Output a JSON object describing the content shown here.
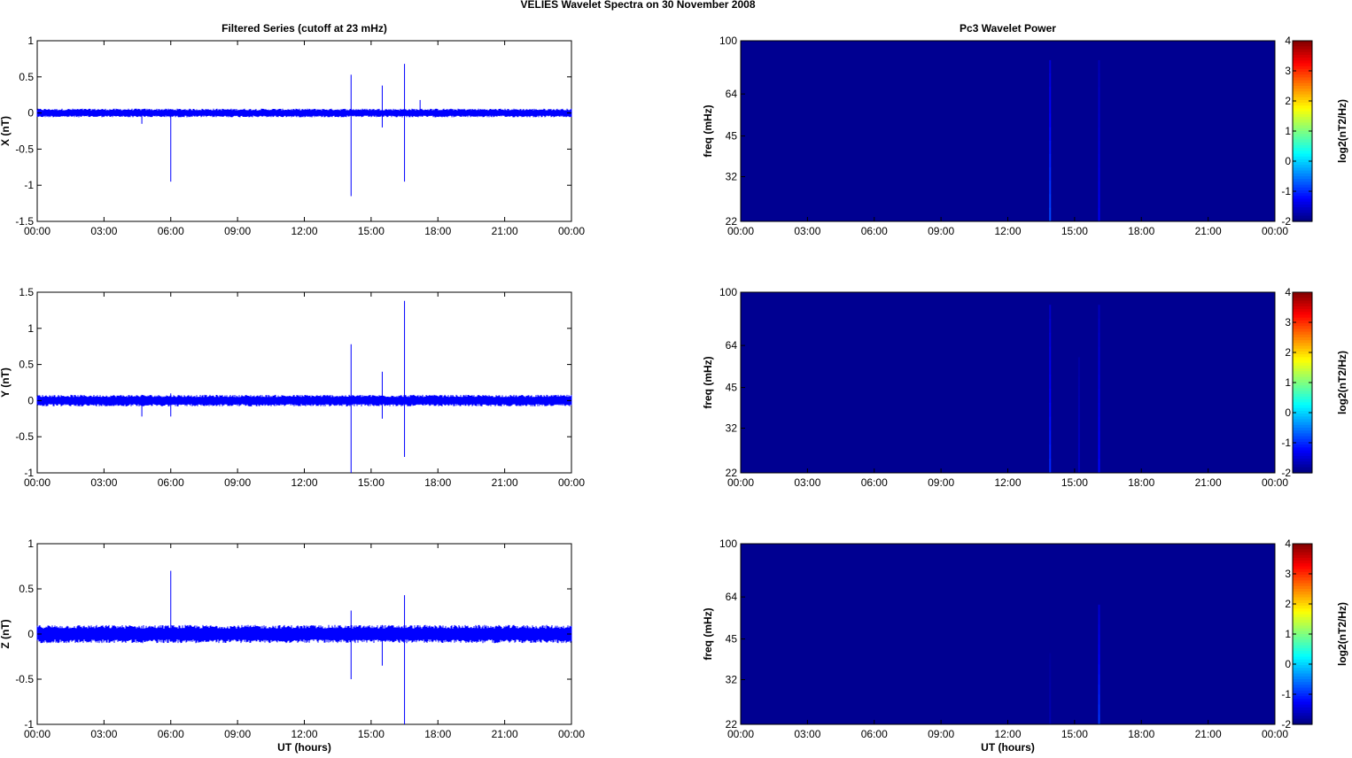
{
  "figure_title": "VELIES Wavelet Spectra on 30 November  2008",
  "colors": {
    "trace": "#0000ff",
    "background_low": "#0000a6",
    "axis": "#000000"
  },
  "chart_data": [
    {
      "type": "line",
      "title": "Filtered Series (cutoff at 23 mHz)",
      "xlabel": "",
      "ylabel": "X (nT)",
      "x_ticks": [
        "00:00",
        "03:00",
        "06:00",
        "09:00",
        "12:00",
        "15:00",
        "18:00",
        "21:00",
        "00:00"
      ],
      "xlim_hours": [
        0,
        24
      ],
      "y_ticks": [
        "1",
        "0.5",
        "0",
        "-0.5",
        "-1",
        "-1.5"
      ],
      "ylim": [
        -1.5,
        1
      ],
      "noise_amplitude": 0.06,
      "spikes": [
        {
          "t": 4.7,
          "min": -0.15,
          "max": 0.05
        },
        {
          "t": 6.0,
          "min": -0.95,
          "max": 0.05
        },
        {
          "t": 14.1,
          "min": -1.15,
          "max": 0.53
        },
        {
          "t": 15.5,
          "min": -0.2,
          "max": 0.38
        },
        {
          "t": 16.5,
          "min": -0.95,
          "max": 0.68
        },
        {
          "t": 17.2,
          "min": -0.05,
          "max": 0.18
        }
      ]
    },
    {
      "type": "line",
      "title": "",
      "xlabel": "",
      "ylabel": "Y (nT)",
      "x_ticks": [
        "00:00",
        "03:00",
        "06:00",
        "09:00",
        "12:00",
        "15:00",
        "18:00",
        "21:00",
        "00:00"
      ],
      "xlim_hours": [
        0,
        24
      ],
      "y_ticks": [
        "1.5",
        "1",
        "0.5",
        "0",
        "-0.5",
        "-1"
      ],
      "ylim": [
        -1,
        1.5
      ],
      "noise_amplitude": 0.08,
      "spikes": [
        {
          "t": 4.7,
          "min": -0.22,
          "max": 0.08
        },
        {
          "t": 6.0,
          "min": -0.22,
          "max": 0.1
        },
        {
          "t": 14.1,
          "min": -1.0,
          "max": 0.78
        },
        {
          "t": 15.5,
          "min": -0.25,
          "max": 0.4
        },
        {
          "t": 16.5,
          "min": -0.78,
          "max": 1.38
        }
      ]
    },
    {
      "type": "line",
      "title": "",
      "xlabel": "UT (hours)",
      "ylabel": "Z (nT)",
      "x_ticks": [
        "00:00",
        "03:00",
        "06:00",
        "09:00",
        "12:00",
        "15:00",
        "18:00",
        "21:00",
        "00:00"
      ],
      "xlim_hours": [
        0,
        24
      ],
      "y_ticks": [
        "1",
        "0.5",
        "0",
        "-0.5",
        "-1"
      ],
      "ylim": [
        -1,
        1
      ],
      "noise_amplitude": 0.1,
      "spikes": [
        {
          "t": 6.0,
          "min": -0.05,
          "max": 0.7
        },
        {
          "t": 14.1,
          "min": -0.5,
          "max": 0.26
        },
        {
          "t": 15.5,
          "min": -0.35,
          "max": 0.1
        },
        {
          "t": 16.5,
          "min": -1.0,
          "max": 0.43
        }
      ]
    },
    {
      "type": "heatmap",
      "title": "Pc3 Wavelet Power",
      "xlabel": "",
      "ylabel": "freq (mHz)",
      "x_ticks": [
        "00:00",
        "03:00",
        "06:00",
        "09:00",
        "12:00",
        "15:00",
        "18:00",
        "21:00",
        "00:00"
      ],
      "xlim_hours": [
        0,
        24
      ],
      "y_ticks": [
        "100",
        "64",
        "45",
        "32",
        "22"
      ],
      "ylim_mHz": [
        22,
        100
      ],
      "y_scale": "log",
      "colorbar_ticks": [
        "4",
        "3",
        "2",
        "1",
        "0",
        "-1",
        "-2"
      ],
      "colorbar_range": [
        -2,
        4
      ],
      "colorbar_label": "log2(nT2/Hz)",
      "background_value": -1.9,
      "events": [
        {
          "t": 13.9,
          "f_max_mHz": 85,
          "peak_value": -0.8
        },
        {
          "t": 16.1,
          "f_max_mHz": 85,
          "peak_value": -1.3
        }
      ]
    },
    {
      "type": "heatmap",
      "title": "",
      "xlabel": "",
      "ylabel": "freq (mHz)",
      "x_ticks": [
        "00:00",
        "03:00",
        "06:00",
        "09:00",
        "12:00",
        "15:00",
        "18:00",
        "21:00",
        "00:00"
      ],
      "xlim_hours": [
        0,
        24
      ],
      "y_ticks": [
        "100",
        "64",
        "45",
        "32",
        "22"
      ],
      "ylim_mHz": [
        22,
        100
      ],
      "y_scale": "log",
      "colorbar_ticks": [
        "4",
        "3",
        "2",
        "1",
        "0",
        "-1",
        "-2"
      ],
      "colorbar_range": [
        -2,
        4
      ],
      "colorbar_label": "log2(nT2/Hz)",
      "background_value": -1.9,
      "events": [
        {
          "t": 13.9,
          "f_max_mHz": 90,
          "peak_value": -1.0
        },
        {
          "t": 15.2,
          "f_max_mHz": 58,
          "peak_value": -1.6
        },
        {
          "t": 16.1,
          "f_max_mHz": 90,
          "peak_value": -1.2
        }
      ]
    },
    {
      "type": "heatmap",
      "title": "",
      "xlabel": "UT (hours)",
      "ylabel": "freq (mHz)",
      "x_ticks": [
        "00:00",
        "03:00",
        "06:00",
        "09:00",
        "12:00",
        "15:00",
        "18:00",
        "21:00",
        "00:00"
      ],
      "xlim_hours": [
        0,
        24
      ],
      "y_ticks": [
        "100",
        "64",
        "45",
        "32",
        "22"
      ],
      "ylim_mHz": [
        22,
        100
      ],
      "y_scale": "log",
      "colorbar_ticks": [
        "4",
        "3",
        "2",
        "1",
        "0",
        "-1",
        "-2"
      ],
      "colorbar_range": [
        -2,
        4
      ],
      "colorbar_label": "log2(nT2/Hz)",
      "background_value": -1.9,
      "events": [
        {
          "t": 13.9,
          "f_max_mHz": 40,
          "peak_value": -1.7
        },
        {
          "t": 16.1,
          "f_max_mHz": 60,
          "peak_value": -0.9
        }
      ]
    }
  ]
}
